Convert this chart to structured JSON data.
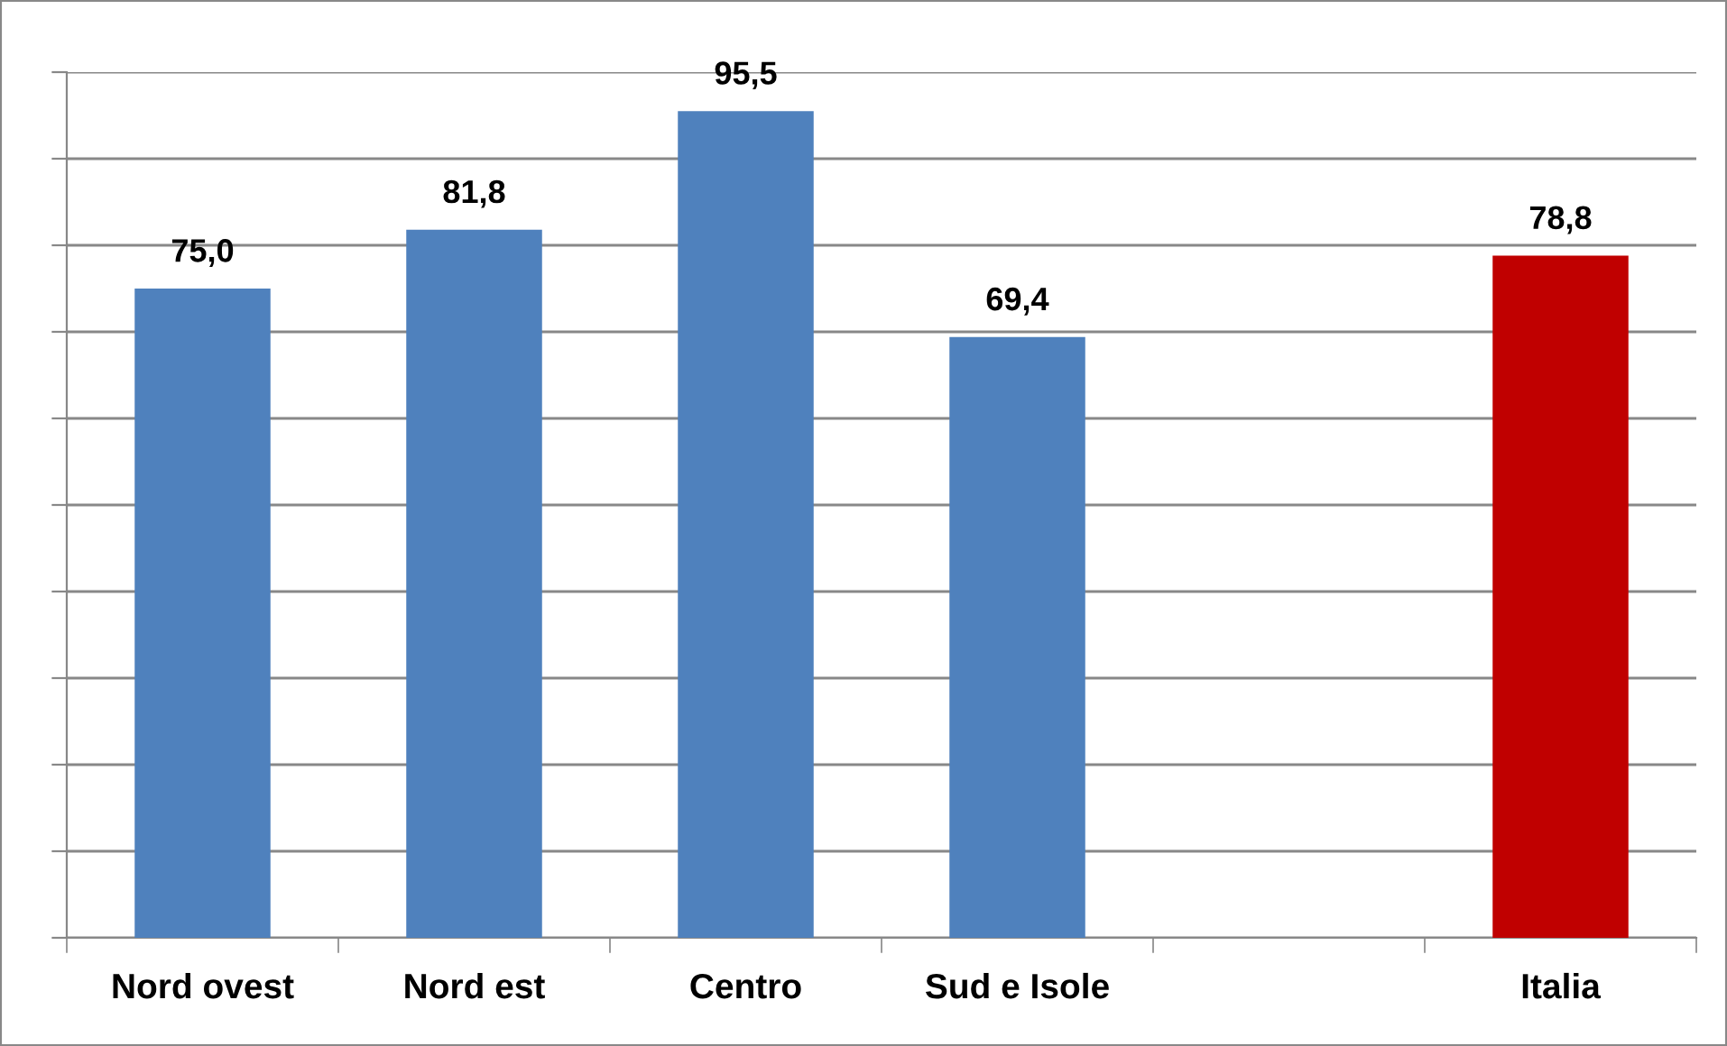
{
  "chart_data": {
    "type": "bar",
    "categories": [
      "Nord ovest",
      "Nord est",
      "Centro",
      "Sud e Isole",
      null,
      "Italia"
    ],
    "values": [
      75.0,
      81.8,
      95.5,
      69.4,
      null,
      78.8
    ],
    "colors": [
      "#4f81bd",
      "#4f81bd",
      "#4f81bd",
      "#4f81bd",
      "#4f81bd",
      "#c00000"
    ],
    "value_labels": [
      "75,0",
      "81,8",
      "95,5",
      "69,4",
      null,
      "78,8"
    ],
    "ylim": [
      0,
      100
    ],
    "yticks": [
      {
        "value": 0,
        "label": null
      },
      {
        "value": 10,
        "label": null
      },
      {
        "value": 20,
        "label": null
      },
      {
        "value": 30,
        "label": null
      },
      {
        "value": 40,
        "label": null
      },
      {
        "value": 50,
        "label": null
      },
      {
        "value": 60,
        "label": null
      },
      {
        "value": 70,
        "label": null
      },
      {
        "value": 80,
        "label": null
      },
      {
        "value": 90,
        "label": null
      },
      {
        "value": 100,
        "label": null
      }
    ],
    "grid": "y",
    "tick_labels": "x"
  }
}
